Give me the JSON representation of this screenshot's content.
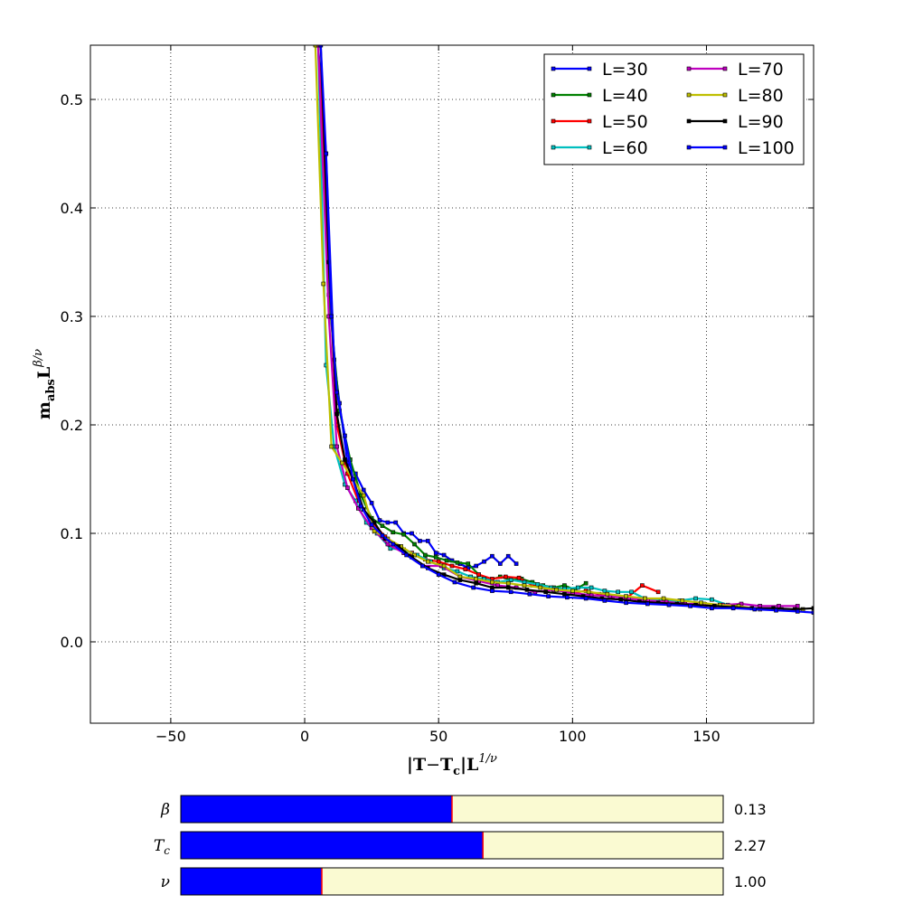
{
  "chart_data": {
    "type": "line",
    "title": "",
    "xlabel": "|T − T_c|L^(1/ν)",
    "ylabel": "m_abs L^(β/ν)",
    "xlim": [
      -80,
      190
    ],
    "ylim": [
      -0.075,
      0.55
    ],
    "xticks": [
      -50,
      0,
      50,
      100,
      150
    ],
    "yticks": [
      0.0,
      0.1,
      0.2,
      0.3,
      0.4,
      0.5
    ],
    "grid": true,
    "legend_position": "top-right",
    "legend_columns": 2,
    "series": [
      {
        "name": "L=30",
        "color": "#0000ff",
        "x": [
          5,
          8,
          11,
          13,
          16,
          19,
          22,
          25,
          28,
          31,
          34,
          37,
          40,
          43,
          46,
          49,
          52,
          55,
          58,
          61,
          64,
          67,
          70,
          73,
          76,
          79
        ],
        "y": [
          0.55,
          0.45,
          0.26,
          0.22,
          0.165,
          0.155,
          0.14,
          0.128,
          0.112,
          0.11,
          0.11,
          0.1,
          0.1,
          0.093,
          0.093,
          0.082,
          0.08,
          0.075,
          0.072,
          0.068,
          0.07,
          0.074,
          0.079,
          0.072,
          0.079,
          0.072
        ]
      },
      {
        "name": "L=40",
        "color": "#008000",
        "x": [
          5,
          9,
          13,
          17,
          21,
          25,
          29,
          33,
          37,
          41,
          45,
          49,
          53,
          57,
          61,
          65,
          69,
          73,
          77,
          81,
          85,
          89,
          93,
          97,
          101,
          105
        ],
        "y": [
          0.55,
          0.32,
          0.213,
          0.168,
          0.135,
          0.114,
          0.107,
          0.101,
          0.099,
          0.09,
          0.08,
          0.078,
          0.075,
          0.073,
          0.072,
          0.062,
          0.057,
          0.06,
          0.057,
          0.058,
          0.055,
          0.052,
          0.05,
          0.052,
          0.048,
          0.054
        ]
      },
      {
        "name": "L=50",
        "color": "#ff0000",
        "x": [
          5,
          9,
          12,
          16,
          20,
          25,
          30,
          35,
          40,
          45,
          50,
          55,
          60,
          65,
          70,
          75,
          80,
          85,
          90,
          95,
          100,
          105,
          110,
          115,
          120,
          126,
          132
        ],
        "y": [
          0.55,
          0.35,
          0.2,
          0.155,
          0.13,
          0.111,
          0.097,
          0.088,
          0.082,
          0.076,
          0.074,
          0.07,
          0.067,
          0.062,
          0.058,
          0.06,
          0.059,
          0.052,
          0.05,
          0.048,
          0.045,
          0.047,
          0.044,
          0.042,
          0.04,
          0.052,
          0.046
        ]
      },
      {
        "name": "L=60",
        "color": "#00bfbf",
        "x": [
          5,
          8,
          11,
          15,
          19,
          23,
          27,
          32,
          37,
          42,
          47,
          52,
          57,
          62,
          67,
          72,
          77,
          82,
          87,
          92,
          97,
          102,
          107,
          112,
          117,
          122,
          127,
          133,
          140,
          146,
          152,
          158
        ],
        "y": [
          0.55,
          0.255,
          0.18,
          0.145,
          0.13,
          0.11,
          0.1,
          0.086,
          0.085,
          0.08,
          0.074,
          0.068,
          0.065,
          0.06,
          0.058,
          0.055,
          0.057,
          0.055,
          0.053,
          0.05,
          0.049,
          0.05,
          0.05,
          0.047,
          0.046,
          0.046,
          0.04,
          0.038,
          0.038,
          0.04,
          0.039,
          0.034
        ]
      },
      {
        "name": "L=70",
        "color": "#bf00bf",
        "x": [
          5,
          9,
          12,
          16,
          20,
          25,
          31,
          37,
          44,
          51,
          58,
          65,
          72,
          79,
          86,
          93,
          100,
          107,
          114,
          121,
          128,
          135,
          142,
          149,
          156,
          163,
          170,
          177,
          184
        ],
        "y": [
          0.55,
          0.3,
          0.18,
          0.142,
          0.123,
          0.105,
          0.09,
          0.082,
          0.07,
          0.07,
          0.06,
          0.056,
          0.052,
          0.05,
          0.046,
          0.048,
          0.045,
          0.043,
          0.042,
          0.04,
          0.038,
          0.037,
          0.035,
          0.035,
          0.034,
          0.035,
          0.033,
          0.033,
          0.033
        ]
      },
      {
        "name": "L=80",
        "color": "#bfbf00",
        "x": [
          4,
          7,
          10,
          14,
          18,
          22,
          26,
          31,
          36,
          41,
          46,
          52,
          58,
          64,
          70,
          76,
          82,
          88,
          94,
          100,
          106,
          113,
          120,
          127,
          134,
          141,
          148,
          155,
          162,
          170,
          178,
          186
        ],
        "y": [
          0.55,
          0.33,
          0.18,
          0.165,
          0.15,
          0.135,
          0.102,
          0.095,
          0.088,
          0.08,
          0.074,
          0.07,
          0.06,
          0.058,
          0.055,
          0.054,
          0.052,
          0.05,
          0.048,
          0.047,
          0.046,
          0.044,
          0.042,
          0.04,
          0.04,
          0.038,
          0.036,
          0.034,
          0.033,
          0.03,
          0.03,
          0.03
        ]
      },
      {
        "name": "L=90",
        "color": "#000000",
        "x": [
          6,
          9,
          12,
          15,
          18,
          22,
          26,
          30,
          35,
          40,
          46,
          52,
          58,
          64,
          70,
          76,
          83,
          90,
          97,
          104,
          111,
          118,
          125,
          132,
          139,
          146,
          153,
          160,
          167,
          175,
          183,
          190
        ],
        "y": [
          0.55,
          0.35,
          0.21,
          0.168,
          0.15,
          0.122,
          0.11,
          0.095,
          0.088,
          0.078,
          0.068,
          0.062,
          0.057,
          0.054,
          0.05,
          0.05,
          0.048,
          0.046,
          0.044,
          0.042,
          0.04,
          0.039,
          0.037,
          0.036,
          0.035,
          0.034,
          0.033,
          0.032,
          0.031,
          0.031,
          0.03,
          0.031
        ]
      },
      {
        "name": "L=100",
        "color": "#0000ff",
        "x": [
          6,
          8,
          10,
          12,
          15,
          18,
          21,
          25,
          29,
          33,
          38,
          44,
          50,
          56,
          63,
          70,
          77,
          84,
          91,
          98,
          105,
          112,
          120,
          128,
          136,
          144,
          152,
          160,
          168,
          176,
          184,
          190
        ],
        "y": [
          0.55,
          0.45,
          0.3,
          0.23,
          0.19,
          0.15,
          0.125,
          0.108,
          0.098,
          0.09,
          0.08,
          0.07,
          0.062,
          0.055,
          0.05,
          0.047,
          0.046,
          0.044,
          0.042,
          0.041,
          0.04,
          0.038,
          0.036,
          0.035,
          0.034,
          0.033,
          0.031,
          0.031,
          0.03,
          0.029,
          0.028,
          0.027
        ]
      }
    ]
  },
  "sliders": [
    {
      "name": "beta",
      "label": "β",
      "value_text": "0.13",
      "fraction": 0.5
    },
    {
      "name": "tc",
      "label": "T_c",
      "value_text": "2.27",
      "fraction": 0.557
    },
    {
      "name": "nu",
      "label": "ν",
      "value_text": "1.00",
      "fraction": 0.26
    }
  ],
  "colors": {
    "slider_fill": "#0000ff",
    "slider_track": "#fafad2",
    "slider_marker": "#ff0000",
    "grid": "#000000"
  }
}
